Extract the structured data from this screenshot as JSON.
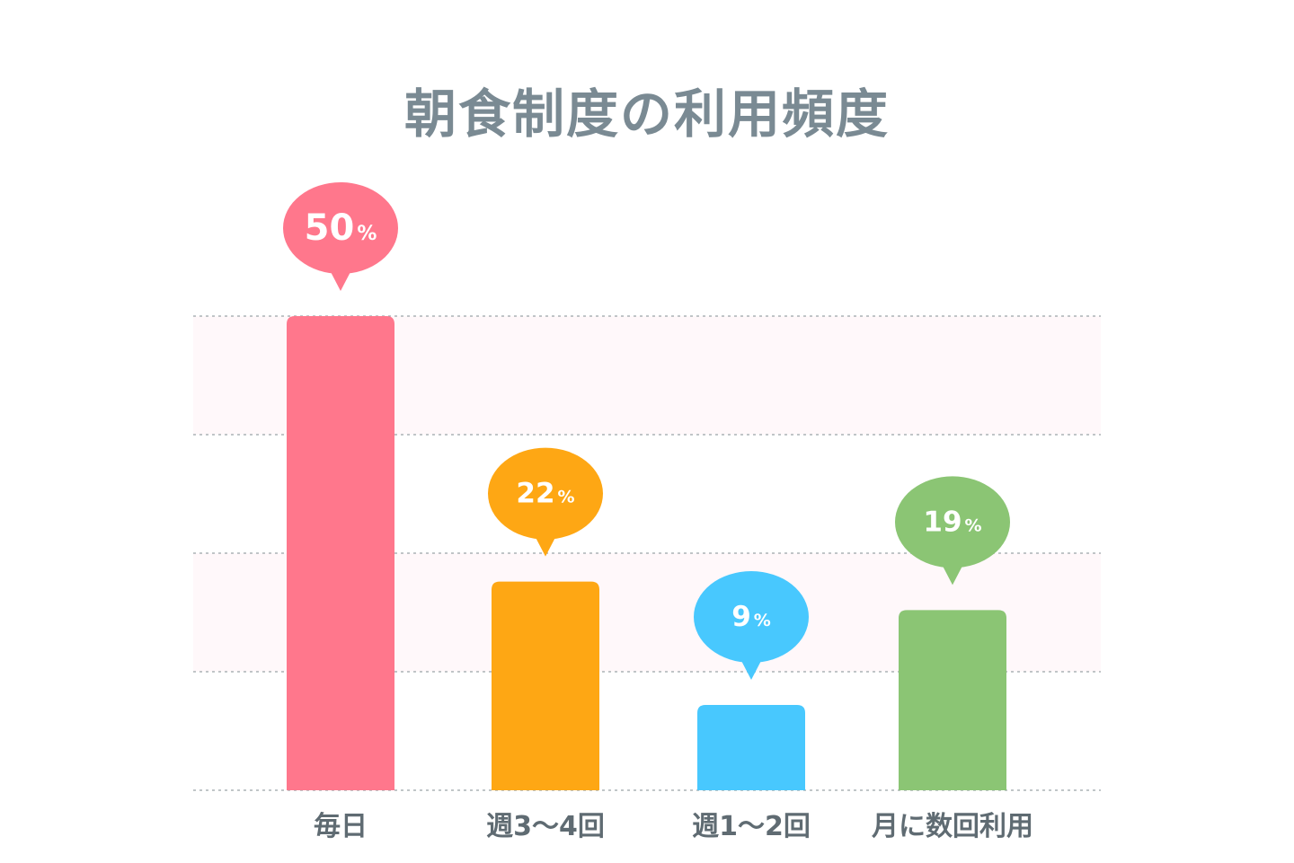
{
  "chart_data": {
    "type": "bar",
    "title": "朝食制度の利用頻度",
    "categories": [
      "毎日",
      "週3〜4回",
      "週1〜2回",
      "月に数回利用"
    ],
    "values": [
      50,
      22,
      9,
      19
    ],
    "value_labels": [
      "50",
      "22",
      "9",
      "19"
    ],
    "unit": "%",
    "colors": [
      "#ff778c",
      "#fea714",
      "#48c8fe",
      "#8bc574"
    ],
    "ylim": [
      0,
      50
    ],
    "grid": true,
    "legend": "none"
  }
}
